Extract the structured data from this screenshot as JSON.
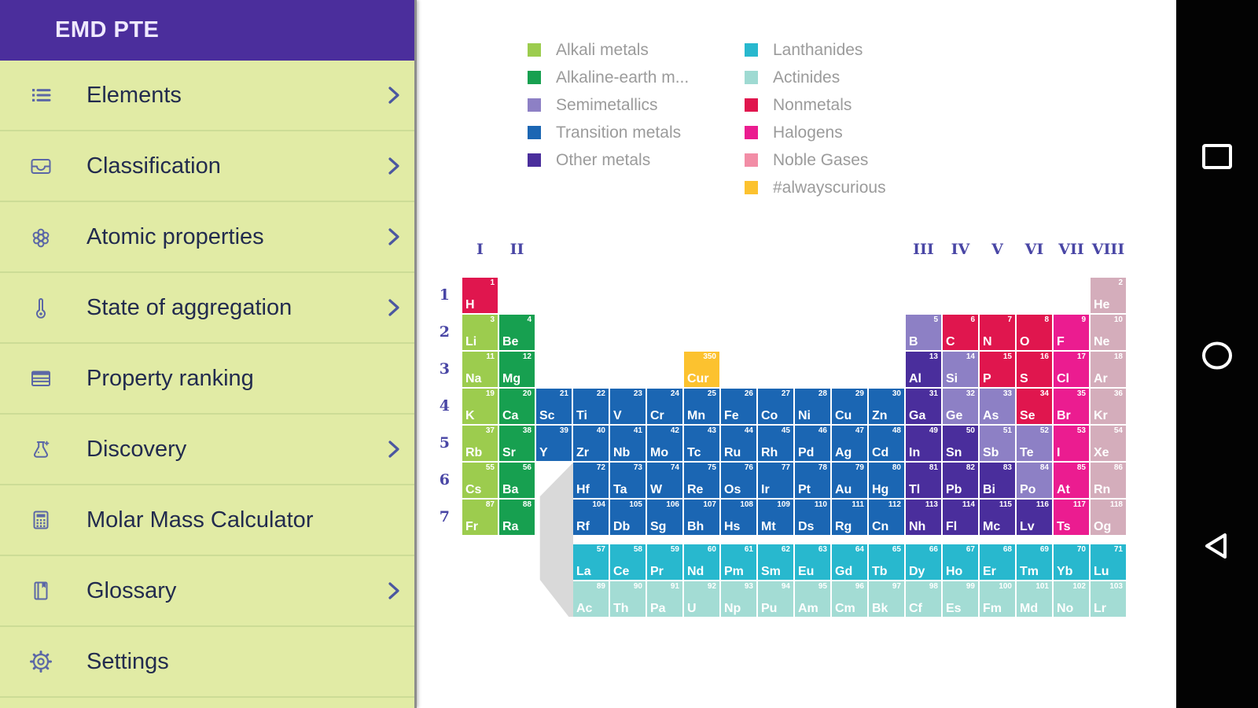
{
  "app": {
    "title": "EMD PTE"
  },
  "sidebar": {
    "items": [
      {
        "label": "Elements",
        "icon": "list-icon",
        "chevron": true
      },
      {
        "label": "Classification",
        "icon": "inbox-icon",
        "chevron": true
      },
      {
        "label": "Atomic properties",
        "icon": "atom-icon",
        "chevron": true
      },
      {
        "label": "State of aggregation",
        "icon": "thermometer-icon",
        "chevron": true
      },
      {
        "label": "Property ranking",
        "icon": "table-icon",
        "chevron": false
      },
      {
        "label": "Discovery",
        "icon": "flask-icon",
        "chevron": true
      },
      {
        "label": "Molar Mass Calculator",
        "icon": "calculator-icon",
        "chevron": false
      },
      {
        "label": "Glossary",
        "icon": "book-icon",
        "chevron": true
      },
      {
        "label": "Settings",
        "icon": "gear-icon",
        "chevron": false
      }
    ]
  },
  "legend": {
    "col1": [
      {
        "label": "Alkali metals",
        "color": "#9ccc4e"
      },
      {
        "label": "Alkaline-earth m...",
        "color": "#17a050"
      },
      {
        "label": "Semimetallics",
        "color": "#8d80c5"
      },
      {
        "label": "Transition metals",
        "color": "#1b66b3"
      },
      {
        "label": "Other metals",
        "color": "#4a2e9c"
      }
    ],
    "col2": [
      {
        "label": "Lanthanides",
        "color": "#28b8ce"
      },
      {
        "label": "Actinides",
        "color": "#9fdad2"
      },
      {
        "label": "Nonmetals",
        "color": "#e0164e"
      },
      {
        "label": "Halogens",
        "color": "#eb1c90"
      },
      {
        "label": "Noble Gases",
        "color": "#f28da6"
      },
      {
        "label": "#alwayscurious",
        "color": "#fcc22f"
      }
    ]
  },
  "table": {
    "group_labels": [
      {
        "label": "I",
        "col": 1
      },
      {
        "label": "II",
        "col": 2
      },
      {
        "label": "III",
        "col": 13
      },
      {
        "label": "IV",
        "col": 14
      },
      {
        "label": "V",
        "col": 15
      },
      {
        "label": "VI",
        "col": 16
      },
      {
        "label": "VII",
        "col": 17
      },
      {
        "label": "VIII",
        "col": 18
      }
    ],
    "period_labels": [
      "1",
      "2",
      "3",
      "4",
      "5",
      "6",
      "7"
    ],
    "category_colors": {
      "alkali": "#9ccc4e",
      "alkaline": "#17a050",
      "transition": "#1b66b3",
      "other": "#4a2e9c",
      "semi": "#8d80c5",
      "nonmetal": "#e0164e",
      "halogen": "#eb1c90",
      "noble": "#d4adbb",
      "lanthanide": "#28b8ce",
      "actinide": "#a3dcd4",
      "curious": "#fcc22f"
    },
    "element_fields": [
      "symbol",
      "number",
      "row",
      "column",
      "category"
    ],
    "elements": [
      [
        "H",
        1,
        1,
        1,
        "nonmetal"
      ],
      [
        "He",
        2,
        1,
        18,
        "noble"
      ],
      [
        "Li",
        3,
        2,
        1,
        "alkali"
      ],
      [
        "Be",
        4,
        2,
        2,
        "alkaline"
      ],
      [
        "B",
        5,
        2,
        13,
        "semi"
      ],
      [
        "C",
        6,
        2,
        14,
        "nonmetal"
      ],
      [
        "N",
        7,
        2,
        15,
        "nonmetal"
      ],
      [
        "O",
        8,
        2,
        16,
        "nonmetal"
      ],
      [
        "F",
        9,
        2,
        17,
        "halogen"
      ],
      [
        "Ne",
        10,
        2,
        18,
        "noble"
      ],
      [
        "Na",
        11,
        3,
        1,
        "alkali"
      ],
      [
        "Mg",
        12,
        3,
        2,
        "alkaline"
      ],
      [
        "Cur",
        350,
        3,
        7,
        "curious"
      ],
      [
        "Al",
        13,
        3,
        13,
        "other"
      ],
      [
        "Si",
        14,
        3,
        14,
        "semi"
      ],
      [
        "P",
        15,
        3,
        15,
        "nonmetal"
      ],
      [
        "S",
        16,
        3,
        16,
        "nonmetal"
      ],
      [
        "Cl",
        17,
        3,
        17,
        "halogen"
      ],
      [
        "Ar",
        18,
        3,
        18,
        "noble"
      ],
      [
        "K",
        19,
        4,
        1,
        "alkali"
      ],
      [
        "Ca",
        20,
        4,
        2,
        "alkaline"
      ],
      [
        "Sc",
        21,
        4,
        3,
        "transition"
      ],
      [
        "Ti",
        22,
        4,
        4,
        "transition"
      ],
      [
        "V",
        23,
        4,
        5,
        "transition"
      ],
      [
        "Cr",
        24,
        4,
        6,
        "transition"
      ],
      [
        "Mn",
        25,
        4,
        7,
        "transition"
      ],
      [
        "Fe",
        26,
        4,
        8,
        "transition"
      ],
      [
        "Co",
        27,
        4,
        9,
        "transition"
      ],
      [
        "Ni",
        28,
        4,
        10,
        "transition"
      ],
      [
        "Cu",
        29,
        4,
        11,
        "transition"
      ],
      [
        "Zn",
        30,
        4,
        12,
        "transition"
      ],
      [
        "Ga",
        31,
        4,
        13,
        "other"
      ],
      [
        "Ge",
        32,
        4,
        14,
        "semi"
      ],
      [
        "As",
        33,
        4,
        15,
        "semi"
      ],
      [
        "Se",
        34,
        4,
        16,
        "nonmetal"
      ],
      [
        "Br",
        35,
        4,
        17,
        "halogen"
      ],
      [
        "Kr",
        36,
        4,
        18,
        "noble"
      ],
      [
        "Rb",
        37,
        5,
        1,
        "alkali"
      ],
      [
        "Sr",
        38,
        5,
        2,
        "alkaline"
      ],
      [
        "Y",
        39,
        5,
        3,
        "transition"
      ],
      [
        "Zr",
        40,
        5,
        4,
        "transition"
      ],
      [
        "Nb",
        41,
        5,
        5,
        "transition"
      ],
      [
        "Mo",
        42,
        5,
        6,
        "transition"
      ],
      [
        "Tc",
        43,
        5,
        7,
        "transition"
      ],
      [
        "Ru",
        44,
        5,
        8,
        "transition"
      ],
      [
        "Rh",
        45,
        5,
        9,
        "transition"
      ],
      [
        "Pd",
        46,
        5,
        10,
        "transition"
      ],
      [
        "Ag",
        47,
        5,
        11,
        "transition"
      ],
      [
        "Cd",
        48,
        5,
        12,
        "transition"
      ],
      [
        "In",
        49,
        5,
        13,
        "other"
      ],
      [
        "Sn",
        50,
        5,
        14,
        "other"
      ],
      [
        "Sb",
        51,
        5,
        15,
        "semi"
      ],
      [
        "Te",
        52,
        5,
        16,
        "semi"
      ],
      [
        "I",
        53,
        5,
        17,
        "halogen"
      ],
      [
        "Xe",
        54,
        5,
        18,
        "noble"
      ],
      [
        "Cs",
        55,
        6,
        1,
        "alkali"
      ],
      [
        "Ba",
        56,
        6,
        2,
        "alkaline"
      ],
      [
        "Hf",
        72,
        6,
        4,
        "transition"
      ],
      [
        "Ta",
        73,
        6,
        5,
        "transition"
      ],
      [
        "W",
        74,
        6,
        6,
        "transition"
      ],
      [
        "Re",
        75,
        6,
        7,
        "transition"
      ],
      [
        "Os",
        76,
        6,
        8,
        "transition"
      ],
      [
        "Ir",
        77,
        6,
        9,
        "transition"
      ],
      [
        "Pt",
        78,
        6,
        10,
        "transition"
      ],
      [
        "Au",
        79,
        6,
        11,
        "transition"
      ],
      [
        "Hg",
        80,
        6,
        12,
        "transition"
      ],
      [
        "Tl",
        81,
        6,
        13,
        "other"
      ],
      [
        "Pb",
        82,
        6,
        14,
        "other"
      ],
      [
        "Bi",
        83,
        6,
        15,
        "other"
      ],
      [
        "Po",
        84,
        6,
        16,
        "semi"
      ],
      [
        "At",
        85,
        6,
        17,
        "halogen"
      ],
      [
        "Rn",
        86,
        6,
        18,
        "noble"
      ],
      [
        "Fr",
        87,
        7,
        1,
        "alkali"
      ],
      [
        "Ra",
        88,
        7,
        2,
        "alkaline"
      ],
      [
        "Rf",
        104,
        7,
        4,
        "transition"
      ],
      [
        "Db",
        105,
        7,
        5,
        "transition"
      ],
      [
        "Sg",
        106,
        7,
        6,
        "transition"
      ],
      [
        "Bh",
        107,
        7,
        7,
        "transition"
      ],
      [
        "Hs",
        108,
        7,
        8,
        "transition"
      ],
      [
        "Mt",
        109,
        7,
        9,
        "transition"
      ],
      [
        "Ds",
        110,
        7,
        10,
        "transition"
      ],
      [
        "Rg",
        111,
        7,
        11,
        "transition"
      ],
      [
        "Cn",
        112,
        7,
        12,
        "transition"
      ],
      [
        "Nh",
        113,
        7,
        13,
        "other"
      ],
      [
        "Fl",
        114,
        7,
        14,
        "other"
      ],
      [
        "Mc",
        115,
        7,
        15,
        "other"
      ],
      [
        "Lv",
        116,
        7,
        16,
        "other"
      ],
      [
        "Ts",
        117,
        7,
        17,
        "halogen"
      ],
      [
        "Og",
        118,
        7,
        18,
        "noble"
      ],
      [
        "La",
        57,
        8,
        4,
        "lanthanide"
      ],
      [
        "Ce",
        58,
        8,
        5,
        "lanthanide"
      ],
      [
        "Pr",
        59,
        8,
        6,
        "lanthanide"
      ],
      [
        "Nd",
        60,
        8,
        7,
        "lanthanide"
      ],
      [
        "Pm",
        61,
        8,
        8,
        "lanthanide"
      ],
      [
        "Sm",
        62,
        8,
        9,
        "lanthanide"
      ],
      [
        "Eu",
        63,
        8,
        10,
        "lanthanide"
      ],
      [
        "Gd",
        64,
        8,
        11,
        "lanthanide"
      ],
      [
        "Tb",
        65,
        8,
        12,
        "lanthanide"
      ],
      [
        "Dy",
        66,
        8,
        13,
        "lanthanide"
      ],
      [
        "Ho",
        67,
        8,
        14,
        "lanthanide"
      ],
      [
        "Er",
        68,
        8,
        15,
        "lanthanide"
      ],
      [
        "Tm",
        69,
        8,
        16,
        "lanthanide"
      ],
      [
        "Yb",
        70,
        8,
        17,
        "lanthanide"
      ],
      [
        "Lu",
        71,
        8,
        18,
        "lanthanide"
      ],
      [
        "Ac",
        89,
        9,
        4,
        "actinide"
      ],
      [
        "Th",
        90,
        9,
        5,
        "actinide"
      ],
      [
        "Pa",
        91,
        9,
        6,
        "actinide"
      ],
      [
        "U",
        92,
        9,
        7,
        "actinide"
      ],
      [
        "Np",
        93,
        9,
        8,
        "actinide"
      ],
      [
        "Pu",
        94,
        9,
        9,
        "actinide"
      ],
      [
        "Am",
        95,
        9,
        10,
        "actinide"
      ],
      [
        "Cm",
        96,
        9,
        11,
        "actinide"
      ],
      [
        "Bk",
        97,
        9,
        12,
        "actinide"
      ],
      [
        "Cf",
        98,
        9,
        13,
        "actinide"
      ],
      [
        "Es",
        99,
        9,
        14,
        "actinide"
      ],
      [
        "Fm",
        100,
        9,
        15,
        "actinide"
      ],
      [
        "Md",
        101,
        9,
        16,
        "actinide"
      ],
      [
        "No",
        102,
        9,
        17,
        "actinide"
      ],
      [
        "Lr",
        103,
        9,
        18,
        "actinide"
      ]
    ]
  },
  "nav_bar": {
    "icons": [
      "recents-square-icon",
      "home-circle-icon",
      "back-triangle-icon"
    ]
  }
}
